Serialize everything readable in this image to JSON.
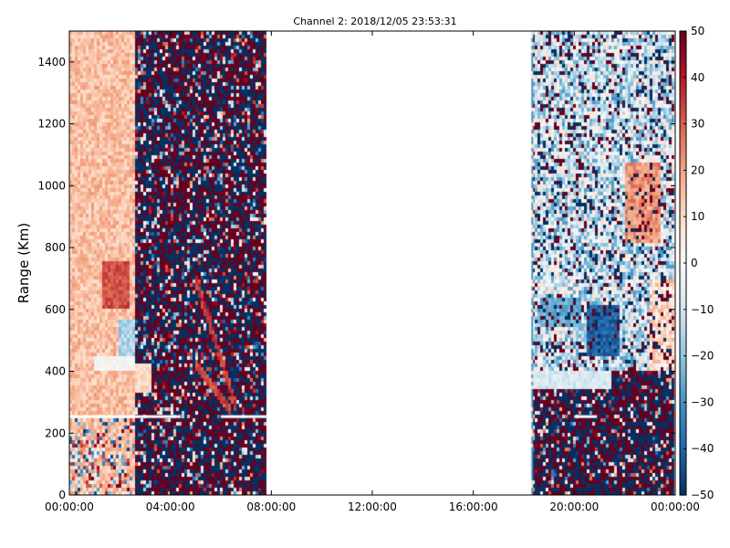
{
  "chart_data": {
    "type": "heatmap",
    "title": "Channel 2: 2018/12/05 23:53:31",
    "xlabel": "",
    "ylabel": "Range (Km)",
    "x_ticks": [
      "00:00:00",
      "04:00:00",
      "08:00:00",
      "12:00:00",
      "16:00:00",
      "20:00:00",
      "00:00:00"
    ],
    "x_range_hours": [
      0,
      24
    ],
    "y_ticks": [
      "0",
      "200",
      "400",
      "600",
      "800",
      "1000",
      "1200",
      "1400"
    ],
    "ylim": [
      0,
      1500
    ],
    "colorbar": {
      "colormap": "RdBu_r",
      "range": [
        -50,
        50
      ],
      "ticks": [
        "50",
        "40",
        "30",
        "20",
        "10",
        "0",
        "−10",
        "−20",
        "−30",
        "−40",
        "−50"
      ]
    },
    "data_segments_hours": [
      {
        "start": 0,
        "end": 7.8
      },
      {
        "start": 18.3,
        "end": 24
      }
    ],
    "features": [
      {
        "desc": "positive (red) region",
        "time_hours": [
          0,
          2.6
        ],
        "range_km": [
          250,
          1500
        ],
        "value": 20
      },
      {
        "desc": "strong red patch",
        "time_hours": [
          1.3,
          2.4
        ],
        "range_km": [
          600,
          750
        ],
        "value": 35
      },
      {
        "desc": "negative (blue) patch",
        "time_hours": [
          2.2,
          3.2
        ],
        "range_km": [
          420,
          560
        ],
        "value": -20
      },
      {
        "desc": "strong blue patch",
        "time_hours": [
          20.5,
          21.8
        ],
        "range_km": [
          450,
          620
        ],
        "value": -45
      },
      {
        "desc": "red patch",
        "time_hours": [
          22.0,
          23.2
        ],
        "range_km": [
          850,
          1050
        ],
        "value": 25
      },
      {
        "desc": "gap line",
        "time_hours": [
          0,
          7.6
        ],
        "range_km": [
          252,
          258
        ],
        "value": null
      }
    ],
    "colors": {
      "noise_red": "#67001f",
      "noise_blue": "#053061",
      "background": "#ffffff"
    }
  }
}
